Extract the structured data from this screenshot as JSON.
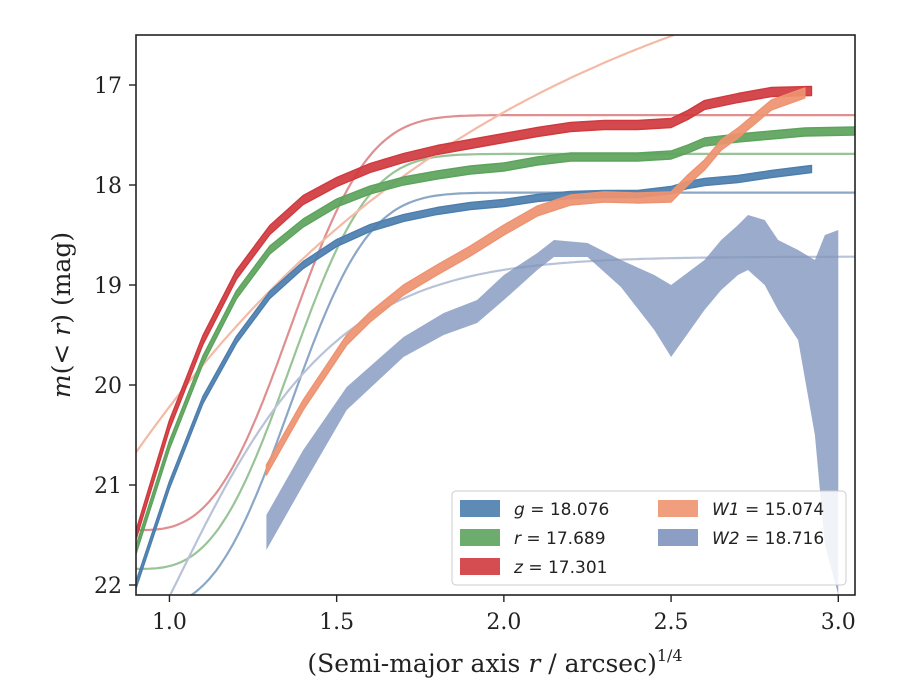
{
  "chart_data": {
    "type": "line",
    "xlabel": "(Semi-major axis r / arcsec)^1/4",
    "ylabel": "m(< r) (mag)",
    "xlim": [
      0.9,
      3.05
    ],
    "ylim": [
      22.1,
      16.5
    ],
    "y_inverted": true,
    "grid": false,
    "legend_position": "lower-right",
    "x_ticks": [
      1.0,
      1.5,
      2.0,
      2.5,
      3.0
    ],
    "x_tick_labels": [
      "1.0",
      "1.5",
      "2.0",
      "2.5",
      "3.0"
    ],
    "y_ticks": [
      17,
      18,
      19,
      20,
      21,
      22
    ],
    "y_tick_labels": [
      "17",
      "18",
      "19",
      "20",
      "21",
      "22"
    ],
    "series": [
      {
        "name": "g = 18.076",
        "legend_var": "g",
        "legend_val": "18.076",
        "color": "#4c7eae",
        "total": 18.076,
        "band_width": 0.07,
        "x": [
          0.9,
          1.0,
          1.1,
          1.2,
          1.3,
          1.4,
          1.5,
          1.6,
          1.7,
          1.8,
          1.9,
          2.0,
          2.1,
          2.2,
          2.3,
          2.4,
          2.5,
          2.55,
          2.6,
          2.7,
          2.8,
          2.92
        ],
        "y": [
          22.0,
          21.0,
          20.15,
          19.55,
          19.1,
          18.8,
          18.58,
          18.43,
          18.33,
          18.26,
          18.21,
          18.18,
          18.13,
          18.1,
          18.09,
          18.09,
          18.05,
          18.0,
          17.97,
          17.94,
          17.89,
          17.84
        ]
      },
      {
        "name": "r = 17.689",
        "legend_var": "r",
        "legend_val": "17.689",
        "color": "#5ca35c",
        "total": 17.689,
        "band_width": 0.08,
        "x": [
          0.9,
          1.0,
          1.1,
          1.2,
          1.3,
          1.4,
          1.5,
          1.6,
          1.7,
          1.8,
          1.9,
          2.0,
          2.1,
          2.2,
          2.3,
          2.4,
          2.5,
          2.55,
          2.6,
          2.7,
          2.8,
          2.9,
          3.05
        ],
        "y": [
          21.65,
          20.6,
          19.75,
          19.1,
          18.65,
          18.38,
          18.18,
          18.05,
          17.96,
          17.9,
          17.85,
          17.82,
          17.76,
          17.72,
          17.72,
          17.72,
          17.7,
          17.64,
          17.57,
          17.53,
          17.5,
          17.47,
          17.46
        ]
      },
      {
        "name": "z = 17.301",
        "legend_var": "z",
        "legend_val": "17.301",
        "color": "#d03a3e",
        "total": 17.301,
        "band_width": 0.09,
        "x": [
          0.9,
          1.0,
          1.1,
          1.2,
          1.3,
          1.4,
          1.5,
          1.6,
          1.7,
          1.8,
          1.9,
          2.0,
          2.1,
          2.2,
          2.3,
          2.4,
          2.5,
          2.55,
          2.6,
          2.7,
          2.8,
          2.92
        ],
        "y": [
          21.5,
          20.4,
          19.55,
          18.9,
          18.45,
          18.15,
          17.97,
          17.83,
          17.73,
          17.65,
          17.59,
          17.53,
          17.47,
          17.42,
          17.4,
          17.4,
          17.38,
          17.3,
          17.2,
          17.13,
          17.07,
          17.06
        ]
      },
      {
        "name": "W1 = 15.074",
        "legend_var": "W1",
        "legend_val": "15.074",
        "color": "#ee9370",
        "total": 15.074,
        "band_width": 0.1,
        "x": [
          1.29,
          1.4,
          1.53,
          1.6,
          1.7,
          1.8,
          1.9,
          2.0,
          2.1,
          2.2,
          2.3,
          2.4,
          2.5,
          2.55,
          2.6,
          2.65,
          2.7,
          2.8,
          2.9
        ],
        "y": [
          20.85,
          20.2,
          19.55,
          19.32,
          19.05,
          18.85,
          18.66,
          18.45,
          18.26,
          18.15,
          18.12,
          18.13,
          18.12,
          17.95,
          17.8,
          17.6,
          17.48,
          17.2,
          17.08
        ]
      }
    ],
    "band_series": {
      "name": "W2 = 18.716",
      "legend_var": "W2",
      "legend_val": "18.716",
      "color": "#7f94bd",
      "total": 18.716,
      "x": [
        1.29,
        1.4,
        1.53,
        1.7,
        1.82,
        1.92,
        2.0,
        2.1,
        2.15,
        2.25,
        2.35,
        2.45,
        2.5,
        2.6,
        2.65,
        2.7,
        2.73,
        2.78,
        2.82,
        2.88,
        2.93,
        2.96,
        3.0
      ],
      "y_low": [
        21.65,
        21.0,
        20.25,
        19.72,
        19.5,
        19.38,
        19.15,
        18.85,
        18.72,
        18.72,
        19.02,
        19.45,
        19.72,
        19.25,
        19.05,
        18.9,
        18.85,
        19.0,
        19.25,
        19.55,
        20.5,
        21.6,
        22.1
      ],
      "y_high": [
        21.3,
        20.65,
        20.02,
        19.52,
        19.28,
        19.15,
        18.9,
        18.68,
        18.55,
        18.58,
        18.75,
        18.9,
        19.0,
        18.75,
        18.55,
        18.4,
        18.3,
        18.35,
        18.55,
        18.65,
        18.75,
        18.5,
        18.45
      ]
    },
    "model_curves": [
      {
        "for": "g",
        "color": "#8ba7c5",
        "a": 18.076,
        "b": 4.15,
        "c": 6.8,
        "d": 3.0
      },
      {
        "for": "r",
        "color": "#98c498",
        "a": 17.689,
        "b": 4.15,
        "c": 6.8,
        "d": 3.0
      },
      {
        "for": "z",
        "color": "#df8f90",
        "a": 17.301,
        "b": 4.15,
        "c": 6.8,
        "d": 3.0
      },
      {
        "for": "W1",
        "color": "#f3bba6",
        "a": 15.074,
        "b": 5.6,
        "c": 0.85,
        "d": 1.0
      },
      {
        "for": "W2",
        "color": "#b9c3d7",
        "a": 18.716,
        "b": 3.95,
        "c": 3.0,
        "d": 1.3
      }
    ]
  }
}
